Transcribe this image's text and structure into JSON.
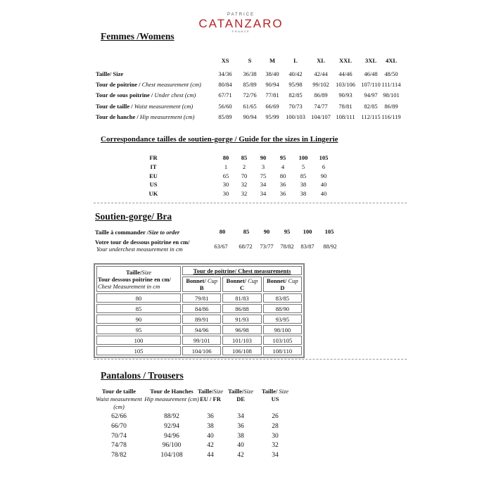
{
  "brand": {
    "pre": "PATRICE",
    "name": "CATANZARO",
    "country": "FRANCE",
    "color": "#b3262a"
  },
  "women": {
    "title": "Femmes /Womens",
    "sizes": [
      "XS",
      "S",
      "M",
      "L",
      "XL",
      "XXL",
      "3XL",
      "4XL"
    ],
    "rows": [
      {
        "fr": "Taille/ Size",
        "en": "",
        "values": [
          "34/36",
          "36/38",
          "38/40",
          "40/42",
          "42/44",
          "44/46",
          "46/48",
          "48/50"
        ]
      },
      {
        "fr": "Tour de poitrine / ",
        "en": "Chest measurement (cm)",
        "values": [
          "80/84",
          "85/89",
          "90/94",
          "95/98",
          "99/102",
          "103/106",
          "107/110",
          "111/114"
        ]
      },
      {
        "fr": "Tour de sous poitrine / ",
        "en": "Under chest (cm)",
        "values": [
          "67/71",
          "72/76",
          "77/81",
          "82/85",
          "86/89",
          "90/93",
          "94/97",
          "98/101"
        ]
      },
      {
        "fr": "Tour de taille / ",
        "en": "Waist measurement (cm)",
        "values": [
          "56/60",
          "61/65",
          "66/69",
          "70/73",
          "74/77",
          "78/81",
          "82/85",
          "86/89"
        ]
      },
      {
        "fr": "Tour de hanche / ",
        "en": "Hip measurement (cm)",
        "values": [
          "85/89",
          "90/94",
          "95/99",
          "100/103",
          "104/107",
          "108/111",
          "112/115",
          "116/119"
        ]
      }
    ]
  },
  "lingerie": {
    "title": "Correspondance tailles de soutien-gorge / Guide for the sizes in Lingerie",
    "rows": [
      {
        "label": "FR",
        "values": [
          "80",
          "85",
          "90",
          "95",
          "100",
          "105"
        ]
      },
      {
        "label": "IT",
        "values": [
          "1",
          "2",
          "3",
          "4",
          "5",
          "6"
        ]
      },
      {
        "label": "EU",
        "values": [
          "65",
          "70",
          "75",
          "80",
          "85",
          "90"
        ]
      },
      {
        "label": "US",
        "values": [
          "30",
          "32",
          "34",
          "36",
          "38",
          "40"
        ]
      },
      {
        "label": "UK",
        "values": [
          "30",
          "32",
          "34",
          "36",
          "38",
          "40"
        ]
      }
    ]
  },
  "bra": {
    "title": "Soutien-gorge/ Bra",
    "order_label_fr": "Taille à commander ",
    "order_label_en": "/Size to order",
    "order_sizes": [
      "80",
      "85",
      "90",
      "95",
      "100",
      "105"
    ],
    "under_label_fr": "Votre tour de dessous poitrine en cm/",
    "under_label_en": "Your underchest measurement in cm",
    "under_values": [
      "63/67",
      "68/72",
      "73/77",
      "78/82",
      "83/87",
      "88/92"
    ],
    "table": {
      "size_fr": "Taille/",
      "size_en": "Size",
      "under_fr": "Tour dessous poitrine en cm/",
      "under_en": "Chest Measurement in cm",
      "chest_header": "Tour de poitrine/ Chest measurements",
      "cup_fr": "Bonnet/ ",
      "cup_en": "Cup",
      "cups": [
        "B",
        "C",
        "D"
      ],
      "rows": [
        [
          "80",
          "79/81",
          "81/83",
          "83/85"
        ],
        [
          "85",
          "84/86",
          "86/88",
          "88/90"
        ],
        [
          "90",
          "89/91",
          "91/93",
          "93/95"
        ],
        [
          "95",
          "94/96",
          "96/98",
          "98/100"
        ],
        [
          "100",
          "99/101",
          "101/103",
          "103/105"
        ],
        [
          "105",
          "104/106",
          "106/108",
          "108/110"
        ]
      ]
    }
  },
  "trousers": {
    "title": "Pantalons / Trousers",
    "headers": [
      {
        "fr": "Tour de taille",
        "en": "Waist measurement (cm)",
        "sub": ""
      },
      {
        "fr": "Tour de Hanches",
        "en": "Hip measurement (cm)",
        "sub": ""
      },
      {
        "fr": "Taille/",
        "en": "Size",
        "sub": "EU / FR"
      },
      {
        "fr": "Taille/",
        "en": "Size",
        "sub": "DE"
      },
      {
        "fr": "Taille/ ",
        "en": "Size",
        "sub": "US"
      }
    ],
    "rows": [
      [
        "62/66",
        "88/92",
        "36",
        "34",
        "26"
      ],
      [
        "66/70",
        "92/94",
        "38",
        "36",
        "28"
      ],
      [
        "70/74",
        "94/96",
        "40",
        "38",
        "30"
      ],
      [
        "74/78",
        "96/100",
        "42",
        "40",
        "32"
      ],
      [
        "78/82",
        "104/108",
        "44",
        "42",
        "34"
      ]
    ]
  }
}
